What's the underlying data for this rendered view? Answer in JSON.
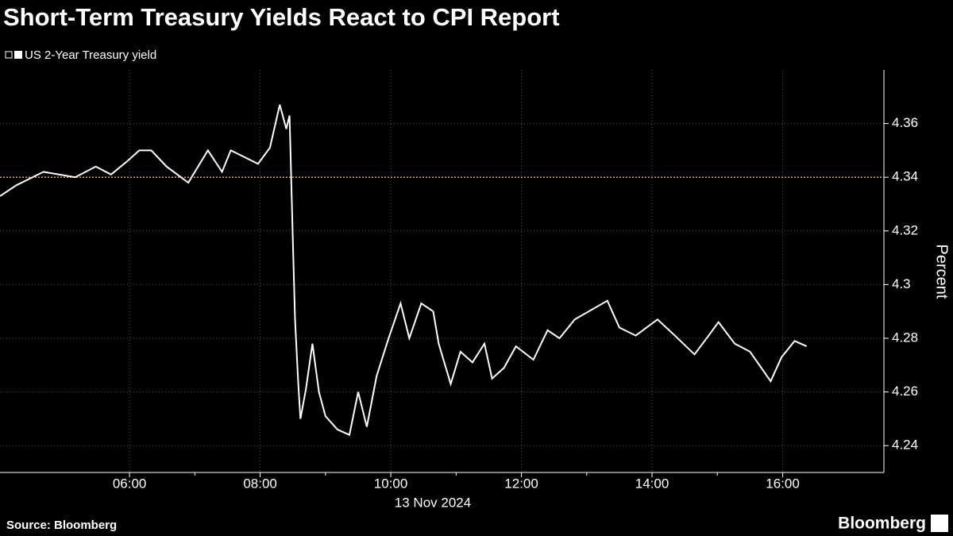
{
  "chart_data": {
    "type": "line",
    "title": "Short-Term Treasury Yields React to CPI Report",
    "ylabel": "Percent",
    "xlabel": "13 Nov 2024",
    "source": "Source: Bloomberg",
    "brand": "Bloomberg",
    "x": [
      "04:01",
      "04:16",
      "04:41",
      "05:10",
      "05:29",
      "05:43",
      "05:58",
      "06:09",
      "06:20",
      "06:34",
      "06:54",
      "07:12",
      "07:25",
      "07:33",
      "07:58",
      "08:09",
      "08:18",
      "08:24",
      "08:27",
      "08:30",
      "08:32",
      "08:35",
      "08:37",
      "08:42",
      "08:48",
      "08:54",
      "09:00",
      "09:11",
      "09:22",
      "09:30",
      "09:38",
      "09:47",
      "09:58",
      "10:09",
      "10:17",
      "10:28",
      "10:39",
      "10:44",
      "10:55",
      "11:04",
      "11:15",
      "11:26",
      "11:33",
      "11:44",
      "11:55",
      "12:11",
      "12:24",
      "12:35",
      "12:49",
      "13:19",
      "13:30",
      "13:45",
      "14:05",
      "14:21",
      "14:39",
      "14:52",
      "15:01",
      "15:16",
      "15:30",
      "15:49",
      "15:59",
      "16:11",
      "16:22"
    ],
    "series": [
      {
        "name": "US 2-Year Treasury yield",
        "color": "#ffffff",
        "values": [
          4.333,
          4.337,
          4.342,
          4.34,
          4.344,
          4.341,
          4.346,
          4.35,
          4.35,
          4.344,
          4.338,
          4.35,
          4.342,
          4.35,
          4.345,
          4.351,
          4.367,
          4.358,
          4.363,
          4.317,
          4.287,
          4.263,
          4.25,
          4.261,
          4.278,
          4.26,
          4.251,
          4.246,
          4.244,
          4.26,
          4.247,
          4.266,
          4.28,
          4.293,
          4.28,
          4.293,
          4.29,
          4.278,
          4.263,
          4.275,
          4.271,
          4.278,
          4.265,
          4.269,
          4.277,
          4.272,
          4.283,
          4.28,
          4.287,
          4.294,
          4.284,
          4.281,
          4.287,
          4.281,
          4.274,
          4.281,
          4.286,
          4.278,
          4.275,
          4.264,
          4.273,
          4.279,
          4.277
        ]
      }
    ],
    "reference_line": 4.34,
    "reference_color": "#e8a33d",
    "xlim": [
      "04:01",
      "17:33"
    ],
    "xticks": [
      "06:00",
      "08:00",
      "10:00",
      "12:00",
      "14:00",
      "16:00"
    ],
    "ylim": [
      4.23,
      4.38
    ],
    "yticks": [
      4.24,
      4.26,
      4.28,
      4.3,
      4.32,
      4.34,
      4.36
    ],
    "grid": true
  }
}
